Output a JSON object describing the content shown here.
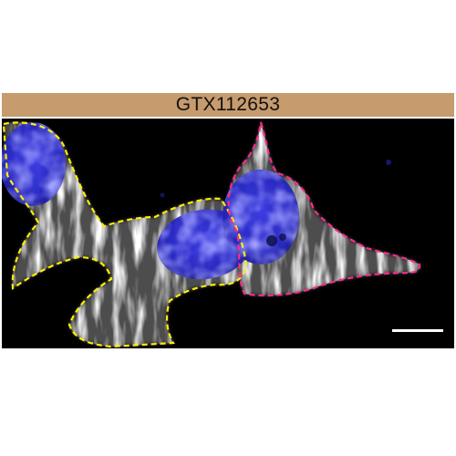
{
  "panel": {
    "antibody_label": "GTX112653"
  },
  "colors": {
    "label_bar": "#c69b6d",
    "background": "#000000",
    "nucleus_stain": "#2c2cd8",
    "cytoskeleton_stain": "#e8e8e8",
    "outline_left_cells": "#ffee00",
    "outline_right_cell": "#ff2a8a",
    "scale_bar": "#ffffff"
  }
}
